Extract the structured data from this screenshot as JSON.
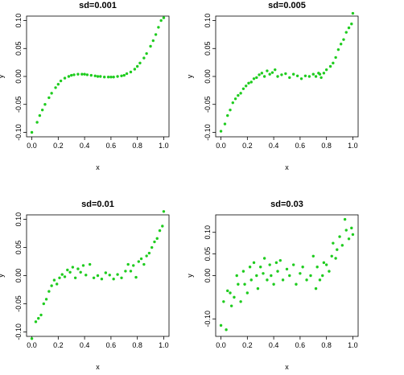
{
  "chart_data": [
    {
      "type": "scatter",
      "title": "sd=0.001",
      "xlabel": "x",
      "ylabel": "y",
      "xlim": [
        0,
        1
      ],
      "ylim": [
        -0.1,
        0.1
      ],
      "xticks": [
        "0.0",
        "0.2",
        "0.4",
        "0.6",
        "0.8",
        "1.0"
      ],
      "yticks": [
        "-0.10",
        "-0.05",
        "0.00",
        "0.05",
        "0.10"
      ],
      "grid": false,
      "color": "#1fcc1f",
      "x": [
        0.0,
        0.04,
        0.06,
        0.08,
        0.1,
        0.13,
        0.15,
        0.18,
        0.2,
        0.22,
        0.25,
        0.28,
        0.3,
        0.32,
        0.35,
        0.38,
        0.4,
        0.42,
        0.45,
        0.48,
        0.5,
        0.52,
        0.55,
        0.58,
        0.6,
        0.62,
        0.65,
        0.68,
        0.7,
        0.72,
        0.75,
        0.78,
        0.8,
        0.82,
        0.85,
        0.87,
        0.9,
        0.92,
        0.94,
        0.96,
        0.98,
        1.0
      ],
      "y": [
        -0.1,
        -0.082,
        -0.07,
        -0.06,
        -0.05,
        -0.038,
        -0.03,
        -0.02,
        -0.014,
        -0.008,
        -0.003,
        0.0,
        0.002,
        0.003,
        0.004,
        0.004,
        0.004,
        0.003,
        0.002,
        0.001,
        0.0,
        0.0,
        -0.001,
        -0.001,
        -0.001,
        -0.001,
        0.0,
        0.001,
        0.002,
        0.005,
        0.008,
        0.013,
        0.018,
        0.024,
        0.033,
        0.041,
        0.054,
        0.064,
        0.075,
        0.088,
        0.1,
        0.105
      ]
    },
    {
      "type": "scatter",
      "title": "sd=0.005",
      "xlabel": "x",
      "ylabel": "y",
      "xlim": [
        0,
        1
      ],
      "ylim": [
        -0.1,
        0.1
      ],
      "xticks": [
        "0.0",
        "0.2",
        "0.4",
        "0.6",
        "0.8",
        "1.0"
      ],
      "yticks": [
        "-0.10",
        "-0.05",
        "0.00",
        "0.05",
        "0.10"
      ],
      "grid": false,
      "color": "#1fcc1f",
      "x": [
        0.0,
        0.03,
        0.05,
        0.07,
        0.09,
        0.11,
        0.13,
        0.15,
        0.17,
        0.19,
        0.21,
        0.23,
        0.25,
        0.27,
        0.29,
        0.31,
        0.33,
        0.35,
        0.37,
        0.39,
        0.41,
        0.43,
        0.46,
        0.49,
        0.52,
        0.55,
        0.58,
        0.61,
        0.64,
        0.67,
        0.7,
        0.72,
        0.74,
        0.75,
        0.76,
        0.78,
        0.8,
        0.83,
        0.85,
        0.87,
        0.89,
        0.91,
        0.93,
        0.95,
        0.97,
        0.99,
        1.0
      ],
      "y": [
        -0.098,
        -0.085,
        -0.07,
        -0.06,
        -0.047,
        -0.04,
        -0.034,
        -0.03,
        -0.022,
        -0.017,
        -0.012,
        -0.01,
        -0.004,
        -0.002,
        0.003,
        0.006,
        0.0,
        0.01,
        0.004,
        0.007,
        0.012,
        0.0,
        0.003,
        0.005,
        -0.002,
        0.004,
        0.001,
        -0.004,
        0.001,
        0.0,
        0.004,
        0.0,
        0.006,
        0.004,
        -0.002,
        0.006,
        0.012,
        0.018,
        0.024,
        0.034,
        0.048,
        0.058,
        0.066,
        0.079,
        0.087,
        0.094,
        0.113
      ]
    },
    {
      "type": "scatter",
      "title": "sd=0.01",
      "xlabel": "x",
      "ylabel": "y",
      "xlim": [
        0,
        1
      ],
      "ylim": [
        -0.1,
        0.1
      ],
      "xticks": [
        "0.0",
        "0.2",
        "0.4",
        "0.6",
        "0.8",
        "1.0"
      ],
      "yticks": [
        "-0.10",
        "-0.05",
        "0.00",
        "0.05",
        "0.10"
      ],
      "grid": false,
      "color": "#1fcc1f",
      "x": [
        0.0,
        0.03,
        0.05,
        0.07,
        0.09,
        0.11,
        0.13,
        0.15,
        0.17,
        0.19,
        0.21,
        0.23,
        0.25,
        0.27,
        0.29,
        0.31,
        0.33,
        0.35,
        0.37,
        0.39,
        0.41,
        0.44,
        0.47,
        0.5,
        0.53,
        0.56,
        0.59,
        0.62,
        0.65,
        0.68,
        0.71,
        0.73,
        0.75,
        0.77,
        0.79,
        0.81,
        0.83,
        0.85,
        0.87,
        0.89,
        0.91,
        0.93,
        0.95,
        0.97,
        0.99,
        1.0
      ],
      "y": [
        -0.112,
        -0.082,
        -0.076,
        -0.07,
        -0.05,
        -0.042,
        -0.028,
        -0.018,
        -0.008,
        -0.015,
        -0.004,
        0.002,
        -0.002,
        0.01,
        0.006,
        0.015,
        -0.004,
        0.012,
        0.006,
        0.018,
        0.001,
        0.02,
        -0.004,
        0.0,
        -0.006,
        0.005,
        0.001,
        -0.006,
        0.002,
        -0.004,
        0.008,
        0.02,
        0.008,
        0.018,
        -0.003,
        0.025,
        0.03,
        0.02,
        0.035,
        0.04,
        0.05,
        0.06,
        0.066,
        0.08,
        0.088,
        0.114
      ]
    },
    {
      "type": "scatter",
      "title": "sd=0.03",
      "xlabel": "x",
      "ylabel": "y",
      "xlim": [
        0,
        1
      ],
      "ylim": [
        -0.13,
        0.13
      ],
      "xticks": [
        "0.0",
        "0.2",
        "0.4",
        "0.6",
        "0.8",
        "1.0"
      ],
      "yticks": [
        "-0.10",
        "0.00",
        "0.05",
        "0.10"
      ],
      "grid": false,
      "color": "#1fcc1f",
      "x": [
        0.0,
        0.02,
        0.04,
        0.05,
        0.07,
        0.08,
        0.1,
        0.12,
        0.13,
        0.15,
        0.17,
        0.18,
        0.2,
        0.22,
        0.23,
        0.25,
        0.27,
        0.28,
        0.3,
        0.32,
        0.33,
        0.35,
        0.37,
        0.38,
        0.4,
        0.42,
        0.43,
        0.45,
        0.47,
        0.5,
        0.52,
        0.55,
        0.57,
        0.6,
        0.62,
        0.65,
        0.68,
        0.7,
        0.72,
        0.73,
        0.75,
        0.77,
        0.78,
        0.8,
        0.82,
        0.84,
        0.85,
        0.87,
        0.88,
        0.9,
        0.92,
        0.94,
        0.95,
        0.97,
        0.99,
        1.0
      ],
      "y": [
        -0.115,
        -0.06,
        -0.125,
        -0.035,
        -0.04,
        -0.07,
        -0.05,
        0.0,
        -0.02,
        -0.06,
        0.01,
        -0.02,
        -0.04,
        0.02,
        -0.01,
        0.03,
        0.0,
        -0.03,
        0.02,
        0.005,
        0.04,
        -0.01,
        0.025,
        0.0,
        -0.02,
        0.03,
        0.01,
        0.035,
        -0.01,
        0.015,
        0.0,
        0.025,
        -0.02,
        0.005,
        0.02,
        -0.01,
        0.0,
        0.045,
        -0.03,
        0.02,
        -0.01,
        0.0,
        0.03,
        0.025,
        0.01,
        0.045,
        0.075,
        0.04,
        0.06,
        0.09,
        0.07,
        0.13,
        0.105,
        0.085,
        0.11,
        0.095
      ]
    }
  ]
}
